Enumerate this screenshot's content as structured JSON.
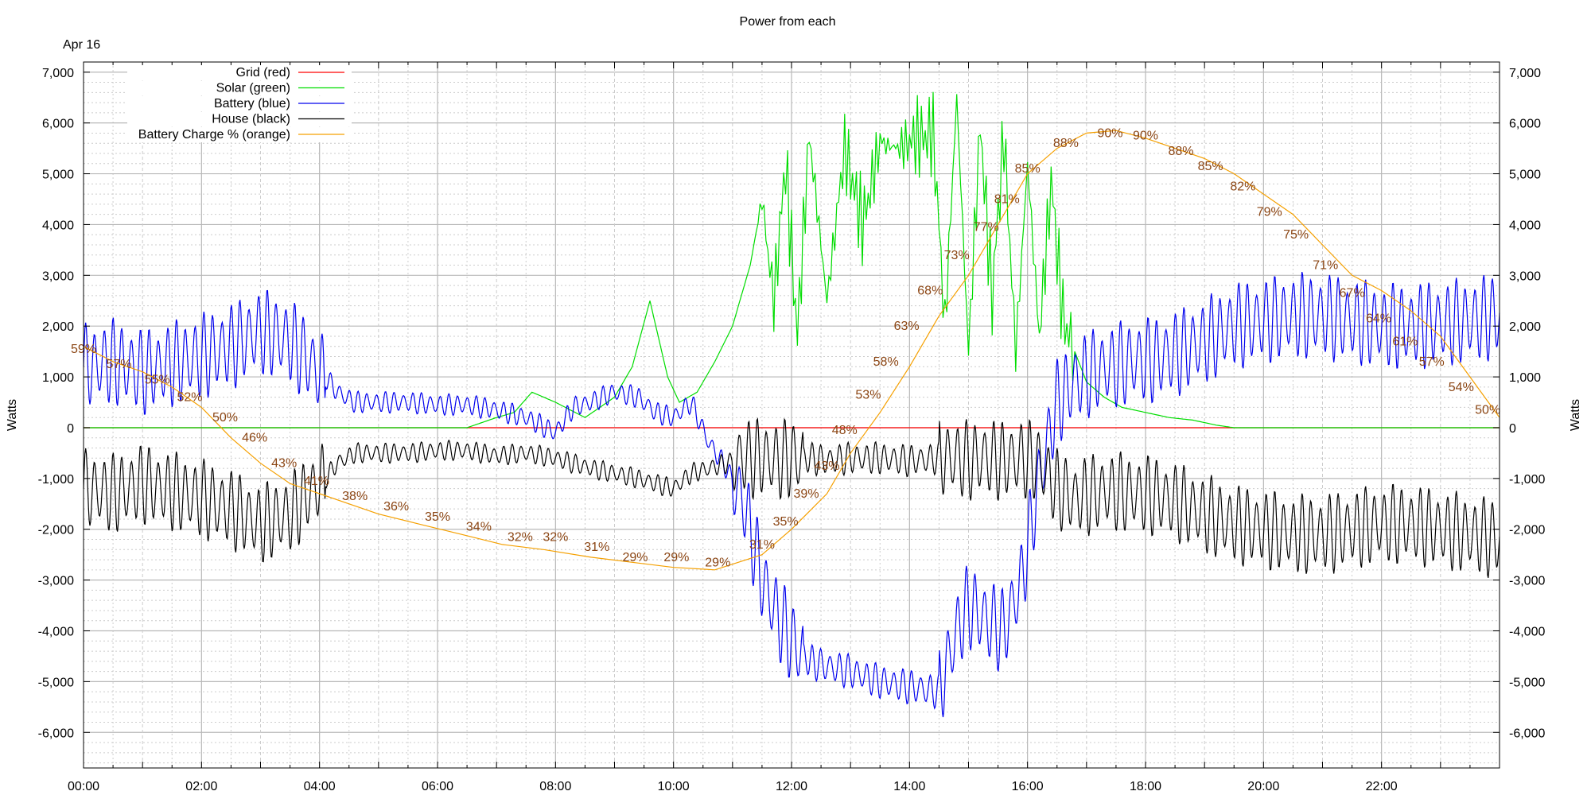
{
  "chart_data": {
    "type": "line",
    "title": "Power from each",
    "date_label": "Apr 16",
    "ylabel_left": "Watts",
    "ylabel_right": "Watts",
    "xlim": [
      0,
      24
    ],
    "ylim": [
      -6700,
      7200
    ],
    "y_ticks": [
      7000,
      6000,
      5000,
      4000,
      3000,
      2000,
      1000,
      0,
      -1000,
      -2000,
      -3000,
      -4000,
      -5000,
      -6000
    ],
    "y_tick_labels": [
      "7,000",
      "6,000",
      "5,000",
      "4,000",
      "3,000",
      "2,000",
      "1,000",
      "0",
      "-1,000",
      "-2,000",
      "-3,000",
      "-4,000",
      "-5,000",
      "-6,000"
    ],
    "x_ticks": [
      0,
      2,
      4,
      6,
      8,
      10,
      12,
      14,
      16,
      18,
      20,
      22
    ],
    "x_tick_labels": [
      "00:00",
      "02:00",
      "04:00",
      "06:00",
      "08:00",
      "10:00",
      "12:00",
      "14:00",
      "16:00",
      "18:00",
      "20:00",
      "22:00"
    ],
    "grid": true,
    "legend_position": "top-left",
    "series": [
      {
        "name": "Grid (red)",
        "color": "#ff0000",
        "x": [
          0,
          4,
          8,
          12,
          16,
          20,
          24
        ],
        "y": [
          0,
          0,
          0,
          0,
          0,
          0,
          0
        ]
      },
      {
        "name": "Solar (green)",
        "color": "#00dd00",
        "x": [
          0,
          6.5,
          7.0,
          7.3,
          7.6,
          8.0,
          8.5,
          9.0,
          9.3,
          9.6,
          9.9,
          10.1,
          10.4,
          10.7,
          11.0,
          11.3,
          11.5,
          11.7,
          11.9,
          12.1,
          12.3,
          12.6,
          12.9,
          13.2,
          13.5,
          13.8,
          14.1,
          14.4,
          14.6,
          14.8,
          15.0,
          15.2,
          15.4,
          15.6,
          15.8,
          16.0,
          16.2,
          16.4,
          16.6,
          16.8,
          17.0,
          17.3,
          17.6,
          18.0,
          18.4,
          18.8,
          19.2,
          19.5,
          20,
          24
        ],
        "y": [
          0,
          0,
          200,
          300,
          700,
          500,
          200,
          600,
          1200,
          2500,
          1000,
          500,
          700,
          1300,
          2000,
          3200,
          4500,
          2500,
          5200,
          1800,
          5800,
          2500,
          5500,
          4000,
          5600,
          5500,
          5700,
          5800,
          2000,
          6500,
          1500,
          6000,
          2500,
          5800,
          1500,
          5200,
          1800,
          4800,
          2200,
          1500,
          900,
          600,
          400,
          300,
          200,
          150,
          50,
          0,
          0,
          0
        ]
      },
      {
        "name": "Battery (blue)",
        "color": "#0000ee",
        "x": [
          0,
          0.5,
          1.0,
          1.5,
          2.0,
          2.5,
          3.0,
          3.5,
          3.9,
          4.1,
          4.3,
          4.6,
          5.0,
          5.5,
          6.0,
          6.5,
          7.0,
          7.5,
          8.0,
          8.3,
          8.6,
          9.0,
          9.4,
          9.7,
          10.0,
          10.3,
          10.6,
          10.9,
          11.2,
          11.5,
          11.8,
          12.0,
          12.3,
          12.6,
          13.0,
          13.5,
          14.0,
          14.5,
          14.8,
          15.0,
          15.3,
          15.6,
          15.9,
          16.2,
          16.5,
          16.8,
          17.1,
          17.4,
          17.8,
          18.2,
          18.6,
          19.0,
          19.5,
          20.0,
          20.5,
          21.0,
          21.5,
          22.0,
          22.5,
          23.0,
          23.5,
          24
        ],
        "y": [
          1200,
          1300,
          1100,
          1250,
          1400,
          1600,
          1900,
          1700,
          1200,
          1000,
          700,
          500,
          500,
          500,
          450,
          450,
          350,
          200,
          -100,
          400,
          500,
          700,
          600,
          300,
          200,
          500,
          -300,
          -800,
          -1500,
          -3000,
          -3800,
          -4200,
          -4600,
          -4700,
          -4800,
          -5000,
          -5100,
          -5200,
          -4000,
          -3500,
          -3800,
          -4000,
          -3000,
          -1000,
          500,
          900,
          1100,
          1200,
          1300,
          1350,
          1500,
          1700,
          2000,
          2100,
          2200,
          2200,
          2100,
          2000,
          2000,
          2050,
          2100,
          2200
        ]
      },
      {
        "name": "House (black)",
        "color": "#000000",
        "x": [
          0,
          0.5,
          1.0,
          1.5,
          2.0,
          2.5,
          3.0,
          3.5,
          3.9,
          4.1,
          4.3,
          4.6,
          5.0,
          5.5,
          6.0,
          6.5,
          7.0,
          7.5,
          8.0,
          8.3,
          8.6,
          9.0,
          9.4,
          9.7,
          10.0,
          10.3,
          10.6,
          10.9,
          11.2,
          11.5,
          11.8,
          12.0,
          12.3,
          12.6,
          13.0,
          13.5,
          14.0,
          14.5,
          14.8,
          15.0,
          15.3,
          15.6,
          15.9,
          16.2,
          16.5,
          16.8,
          17.1,
          17.4,
          17.8,
          18.2,
          18.6,
          19.0,
          19.5,
          20.0,
          20.5,
          21.0,
          21.5,
          22.0,
          22.5,
          23.0,
          23.5,
          24
        ],
        "y": [
          -1200,
          -1300,
          -1100,
          -1250,
          -1400,
          -1600,
          -1900,
          -1700,
          -1200,
          -1000,
          -700,
          -500,
          -500,
          -500,
          -450,
          -450,
          -550,
          -500,
          -600,
          -700,
          -800,
          -900,
          -1000,
          -1100,
          -1200,
          -900,
          -800,
          -700,
          -600,
          -600,
          -650,
          -600,
          -600,
          -650,
          -600,
          -600,
          -650,
          -600,
          -600,
          -650,
          -600,
          -650,
          -600,
          -700,
          -1200,
          -1400,
          -1300,
          -1250,
          -1300,
          -1350,
          -1500,
          -1700,
          -1900,
          -2000,
          -2100,
          -2100,
          -2000,
          -1900,
          -1900,
          -2000,
          -2100,
          -2200
        ]
      },
      {
        "name": "Battery Charge % (orange)",
        "color": "#f5a000",
        "x": [
          0,
          0.5,
          1.0,
          1.5,
          2.0,
          2.5,
          3.0,
          3.5,
          4.0,
          4.5,
          5.0,
          5.7,
          6.4,
          7.1,
          7.8,
          8.6,
          9.3,
          10.0,
          10.7,
          11.5,
          12.0,
          12.6,
          13.0,
          13.5,
          14.0,
          14.5,
          15.0,
          15.5,
          16.0,
          16.5,
          17.0,
          17.5,
          18.0,
          18.5,
          19.0,
          19.5,
          20.0,
          20.5,
          21.0,
          21.5,
          22.0,
          22.5,
          23.0,
          23.5,
          24
        ],
        "y": [
          1600,
          1300,
          1100,
          800,
          400,
          -200,
          -700,
          -1100,
          -1300,
          -1500,
          -1700,
          -1900,
          -2100,
          -2300,
          -2400,
          -2550,
          -2650,
          -2750,
          -2800,
          -2500,
          -2000,
          -1300,
          -500,
          300,
          1200,
          2200,
          3000,
          4000,
          5000,
          5500,
          5800,
          5850,
          5700,
          5500,
          5300,
          5000,
          4600,
          4200,
          3600,
          3000,
          2700,
          2300,
          1800,
          1000,
          200
        ]
      }
    ],
    "annotations": [
      {
        "text": "59%",
        "x": 0.0,
        "y": 1550
      },
      {
        "text": "57%",
        "x": 0.6,
        "y": 1250
      },
      {
        "text": "55%",
        "x": 1.25,
        "y": 950
      },
      {
        "text": "52%",
        "x": 1.8,
        "y": 600
      },
      {
        "text": "50%",
        "x": 2.4,
        "y": 200
      },
      {
        "text": "46%",
        "x": 2.9,
        "y": -200
      },
      {
        "text": "43%",
        "x": 3.4,
        "y": -700
      },
      {
        "text": "41%",
        "x": 3.95,
        "y": -1050
      },
      {
        "text": "38%",
        "x": 4.6,
        "y": -1350
      },
      {
        "text": "36%",
        "x": 5.3,
        "y": -1550
      },
      {
        "text": "35%",
        "x": 6.0,
        "y": -1750
      },
      {
        "text": "34%",
        "x": 6.7,
        "y": -1950
      },
      {
        "text": "32%",
        "x": 7.4,
        "y": -2150
      },
      {
        "text": "32%",
        "x": 8.0,
        "y": -2150
      },
      {
        "text": "31%",
        "x": 8.7,
        "y": -2350
      },
      {
        "text": "29%",
        "x": 9.35,
        "y": -2550
      },
      {
        "text": "29%",
        "x": 10.05,
        "y": -2550
      },
      {
        "text": "29%",
        "x": 10.75,
        "y": -2650
      },
      {
        "text": "31%",
        "x": 11.5,
        "y": -2300
      },
      {
        "text": "35%",
        "x": 11.9,
        "y": -1850
      },
      {
        "text": "39%",
        "x": 12.25,
        "y": -1300
      },
      {
        "text": "43%",
        "x": 12.6,
        "y": -750
      },
      {
        "text": "48%",
        "x": 12.9,
        "y": -50
      },
      {
        "text": "53%",
        "x": 13.3,
        "y": 650
      },
      {
        "text": "58%",
        "x": 13.6,
        "y": 1300
      },
      {
        "text": "63%",
        "x": 13.95,
        "y": 2000
      },
      {
        "text": "68%",
        "x": 14.35,
        "y": 2700
      },
      {
        "text": "73%",
        "x": 14.8,
        "y": 3400
      },
      {
        "text": "77%",
        "x": 15.3,
        "y": 3950
      },
      {
        "text": "81%",
        "x": 15.65,
        "y": 4500
      },
      {
        "text": "85%",
        "x": 16.0,
        "y": 5100
      },
      {
        "text": "88%",
        "x": 16.65,
        "y": 5600
      },
      {
        "text": "90%",
        "x": 17.4,
        "y": 5800
      },
      {
        "text": "90%",
        "x": 18.0,
        "y": 5750
      },
      {
        "text": "88%",
        "x": 18.6,
        "y": 5450
      },
      {
        "text": "85%",
        "x": 19.1,
        "y": 5150
      },
      {
        "text": "82%",
        "x": 19.65,
        "y": 4750
      },
      {
        "text": "79%",
        "x": 20.1,
        "y": 4250
      },
      {
        "text": "75%",
        "x": 20.55,
        "y": 3800
      },
      {
        "text": "71%",
        "x": 21.05,
        "y": 3200
      },
      {
        "text": "67%",
        "x": 21.5,
        "y": 2650
      },
      {
        "text": "64%",
        "x": 21.95,
        "y": 2150
      },
      {
        "text": "61%",
        "x": 22.4,
        "y": 1700
      },
      {
        "text": "57%",
        "x": 22.85,
        "y": 1300
      },
      {
        "text": "54%",
        "x": 23.35,
        "y": 800
      },
      {
        "text": "50%",
        "x": 23.8,
        "y": 350
      }
    ]
  }
}
